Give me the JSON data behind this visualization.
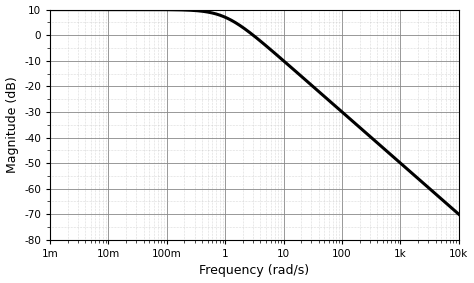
{
  "freq_start": 0.001,
  "freq_end": 10000,
  "ylim": [
    -80,
    10
  ],
  "yticks": [
    10,
    0,
    -10,
    -20,
    -30,
    -40,
    -50,
    -60,
    -70,
    -80
  ],
  "xlabel": "Frequency (rad/s)",
  "ylabel": "Magnitude (dB)",
  "line_color": "#000000",
  "line_width": 2.2,
  "bg_color": "#ffffff",
  "grid_major_color": "#888888",
  "grid_minor_color": "#bbbbbb",
  "xtick_labels": [
    "1m",
    "10m",
    "100m",
    "1",
    "10",
    "100",
    "1k",
    "10k"
  ],
  "xtick_positions": [
    0.001,
    0.01,
    0.1,
    1,
    10,
    100,
    1000,
    10000
  ],
  "dc_gain_db": 10.0,
  "wn": 1.0,
  "filter_order": 1
}
